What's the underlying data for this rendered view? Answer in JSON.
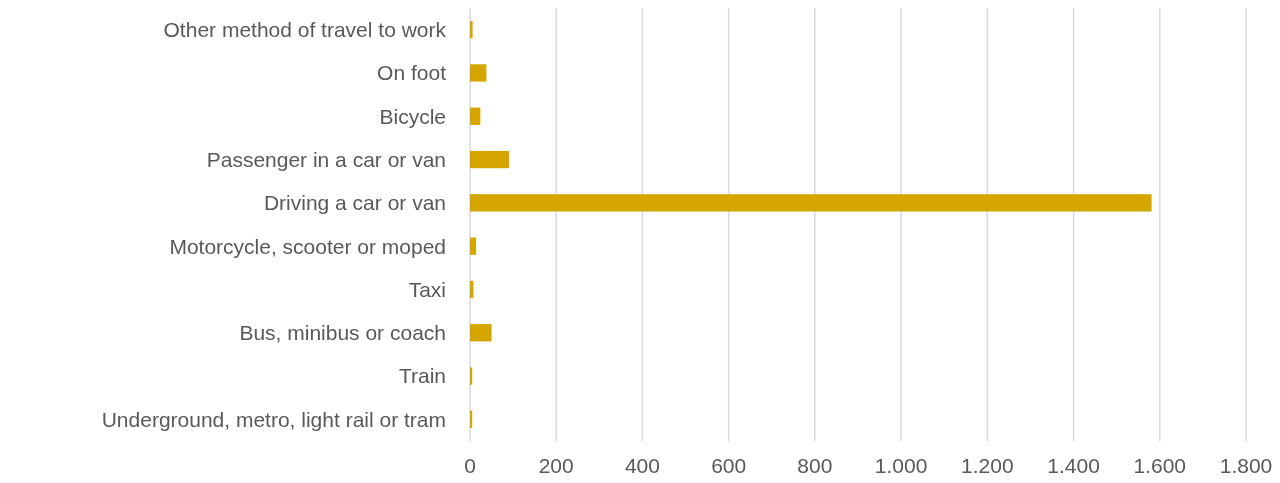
{
  "chart_data": {
    "type": "bar",
    "orientation": "horizontal",
    "categories": [
      "Other method of travel to work",
      "On foot",
      "Bicycle",
      "Passenger in a car or van",
      "Driving a car or van",
      "Motorcycle, scooter or moped",
      "Taxi",
      "Bus, minibus or coach",
      "Train",
      "Underground, metro, light rail or tram"
    ],
    "values": [
      6,
      38,
      24,
      91,
      1581,
      14,
      8,
      50,
      5,
      5
    ],
    "color": "#d5a500",
    "xlim": [
      0,
      1800
    ],
    "xticks": [
      0,
      200,
      400,
      600,
      800,
      {
        "value": 1000,
        "label": "1.000"
      },
      {
        "value": 1200,
        "label": "1.200"
      },
      {
        "value": 1400,
        "label": "1.400"
      },
      {
        "value": 1600,
        "label": "1.600"
      },
      {
        "value": 1800,
        "label": "1.800"
      }
    ],
    "grid": "x"
  }
}
